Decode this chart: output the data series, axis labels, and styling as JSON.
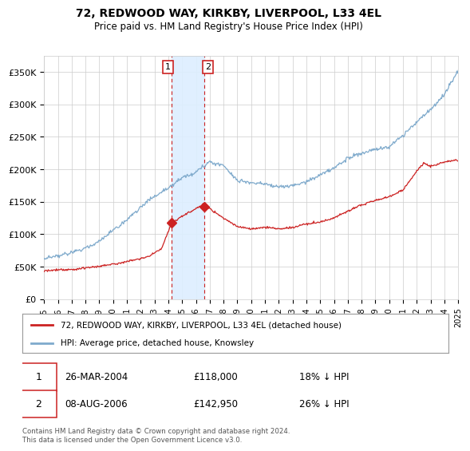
{
  "title": "72, REDWOOD WAY, KIRKBY, LIVERPOOL, L33 4EL",
  "subtitle": "Price paid vs. HM Land Registry's House Price Index (HPI)",
  "legend_line1": "72, REDWOOD WAY, KIRKBY, LIVERPOOL, L33 4EL (detached house)",
  "legend_line2": "HPI: Average price, detached house, Knowsley",
  "transaction1_date": "26-MAR-2004",
  "transaction1_price": 118000,
  "transaction1_label": "1",
  "transaction1_hpi_diff": "18% ↓ HPI",
  "transaction2_date": "08-AUG-2006",
  "transaction2_price": 142950,
  "transaction2_label": "2",
  "transaction2_hpi_diff": "26% ↓ HPI",
  "footer": "Contains HM Land Registry data © Crown copyright and database right 2024.\nThis data is licensed under the Open Government Licence v3.0.",
  "hpi_color": "#7faacc",
  "price_color": "#cc2222",
  "transaction_color": "#cc2222",
  "shade_color": "#ddeeff",
  "grid_color": "#cccccc",
  "background_color": "#ffffff",
  "ylim": [
    0,
    375000
  ],
  "yticks": [
    0,
    50000,
    100000,
    150000,
    200000,
    250000,
    300000,
    350000
  ],
  "ytick_labels": [
    "£0",
    "£50K",
    "£100K",
    "£150K",
    "£200K",
    "£250K",
    "£300K",
    "£350K"
  ],
  "hpi_knots_x": [
    1995.0,
    1996.0,
    1997.0,
    1998.0,
    1999.0,
    2000.0,
    2001.0,
    2002.0,
    2003.0,
    2004.0,
    2005.0,
    2006.0,
    2007.0,
    2008.0,
    2009.0,
    2010.0,
    2011.0,
    2012.0,
    2013.0,
    2014.0,
    2015.0,
    2016.0,
    2017.0,
    2018.0,
    2019.0,
    2020.0,
    2021.0,
    2022.0,
    2023.0,
    2024.0,
    2025.0
  ],
  "hpi_knots_y": [
    62000,
    66000,
    71000,
    78000,
    88000,
    105000,
    122000,
    140000,
    157000,
    170000,
    185000,
    195000,
    210000,
    205000,
    182000,
    178000,
    175000,
    170000,
    172000,
    178000,
    188000,
    200000,
    215000,
    222000,
    228000,
    232000,
    250000,
    272000,
    290000,
    315000,
    350000
  ],
  "price_knots_x": [
    1995.0,
    1997.0,
    1999.0,
    2001.0,
    2002.5,
    2003.5,
    2004.25,
    2005.0,
    2006.25,
    2006.6,
    2007.0,
    2008.0,
    2009.0,
    2010.0,
    2011.0,
    2012.0,
    2013.0,
    2014.0,
    2015.0,
    2016.0,
    2017.0,
    2018.0,
    2019.0,
    2020.0,
    2021.0,
    2022.0,
    2022.5,
    2023.0,
    2024.0,
    2025.0
  ],
  "price_knots_y": [
    44000,
    46000,
    50000,
    58000,
    65000,
    78000,
    118000,
    128000,
    142950,
    148000,
    140000,
    125000,
    112000,
    108000,
    110000,
    108000,
    110000,
    115000,
    118000,
    125000,
    135000,
    145000,
    152000,
    158000,
    168000,
    198000,
    210000,
    205000,
    212000,
    215000
  ],
  "t1_year": 2004.23,
  "t2_year": 2006.6,
  "t1_price": 118000,
  "t2_price": 142950,
  "x_start_year": 1995,
  "x_end_year": 2025
}
